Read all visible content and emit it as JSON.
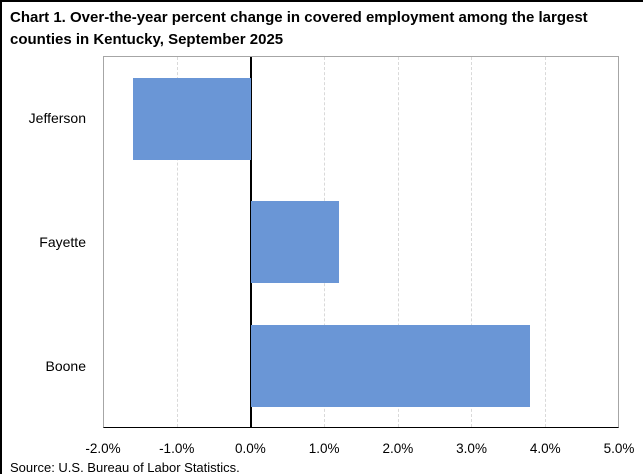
{
  "page": {
    "title": "Chart 1. Over-the-year percent change in covered employment among the largest counties in Kentucky, September 2025",
    "source_note": "Source: U.S. Bureau of Labor Statistics."
  },
  "chart_data": {
    "type": "bar",
    "orientation": "horizontal",
    "title": "Chart 1. Over-the-year percent change in covered employment among the largest counties in Kentucky, September 2025",
    "categories": [
      "Jefferson",
      "Fayette",
      "Boone"
    ],
    "values": [
      -1.6,
      1.2,
      3.8
    ],
    "value_unit": "%",
    "xlabel": "",
    "ylabel": "",
    "xlim": [
      -2.0,
      5.0
    ],
    "xticks": [
      -2.0,
      -1.0,
      0.0,
      1.0,
      2.0,
      3.0,
      4.0,
      5.0
    ],
    "xtick_labels": [
      "-2.0%",
      "-1.0%",
      "0.0%",
      "1.0%",
      "2.0%",
      "3.0%",
      "4.0%",
      "5.0%"
    ],
    "grid": "vertical-dashed",
    "zero_line": true,
    "legend": "none",
    "bar_color": "#6A96D6",
    "gridline_color": "#D9D9D9",
    "plot_border_color": "#A6A6A6",
    "zero_line_color": "#000000",
    "source": "Source: U.S. Bureau of Labor Statistics."
  }
}
